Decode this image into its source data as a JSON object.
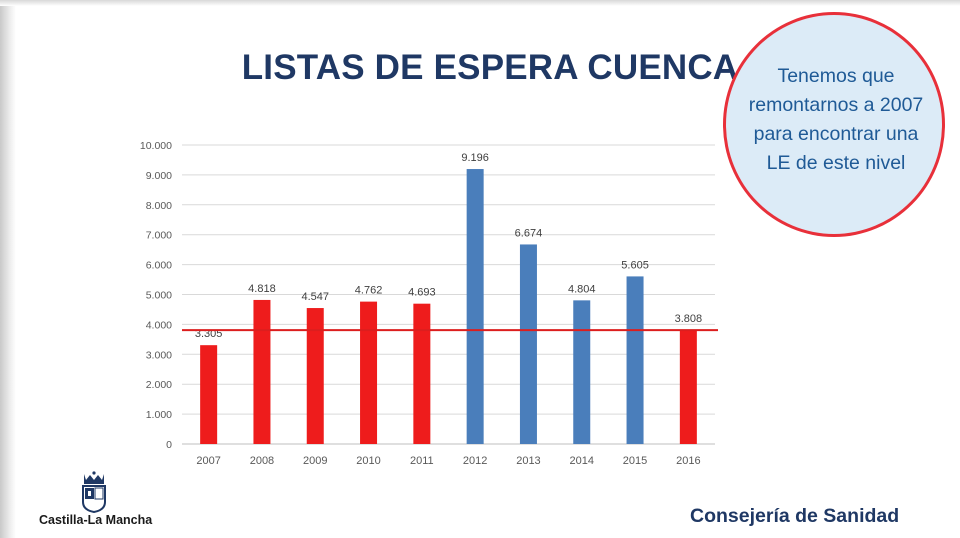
{
  "slide": {
    "title": "LISTAS DE ESPERA CUENCA",
    "callout_lines": [
      "Tenemos que",
      "remontarnos a 2007",
      "para encontrar una",
      "LE de este nivel"
    ],
    "logo_text": "Castilla-La Mancha",
    "footer": "Consejería de Sanidad"
  },
  "colors": {
    "title": "#1f3864",
    "callout_border": "#e8303a",
    "callout_fill": "#dcebf7",
    "callout_text": "#1f5a96",
    "bar_red": "#ee1c1c",
    "bar_blue": "#4a7ebb",
    "reference_line": "#dc1e1e",
    "grid": "#d9d9d9",
    "tick_text": "#595959"
  },
  "chart_data": {
    "type": "bar",
    "title": "",
    "xlabel": "",
    "ylabel": "",
    "ylim": [
      0,
      10000
    ],
    "yticks": [
      0,
      1000,
      2000,
      3000,
      4000,
      5000,
      6000,
      7000,
      8000,
      9000,
      10000
    ],
    "ytick_labels": [
      "0",
      "1.000",
      "2.000",
      "3.000",
      "4.000",
      "5.000",
      "6.000",
      "7.000",
      "8.000",
      "9.000",
      "10.000"
    ],
    "grid": true,
    "legend": "none",
    "categories": [
      "2007",
      "2008",
      "2009",
      "2010",
      "2011",
      "2012",
      "2013",
      "2014",
      "2015",
      "2016"
    ],
    "values": [
      3305,
      4818,
      4547,
      4762,
      4693,
      9196,
      6674,
      4804,
      5605,
      3808
    ],
    "data_labels": [
      "3.305",
      "4.818",
      "4.547",
      "4.762",
      "4.693",
      "9.196",
      "6.674",
      "4.804",
      "5.605",
      "3.808"
    ],
    "bar_colors": [
      "red",
      "red",
      "red",
      "red",
      "red",
      "blue",
      "blue",
      "blue",
      "blue",
      "red"
    ],
    "reference_line": 3808
  }
}
